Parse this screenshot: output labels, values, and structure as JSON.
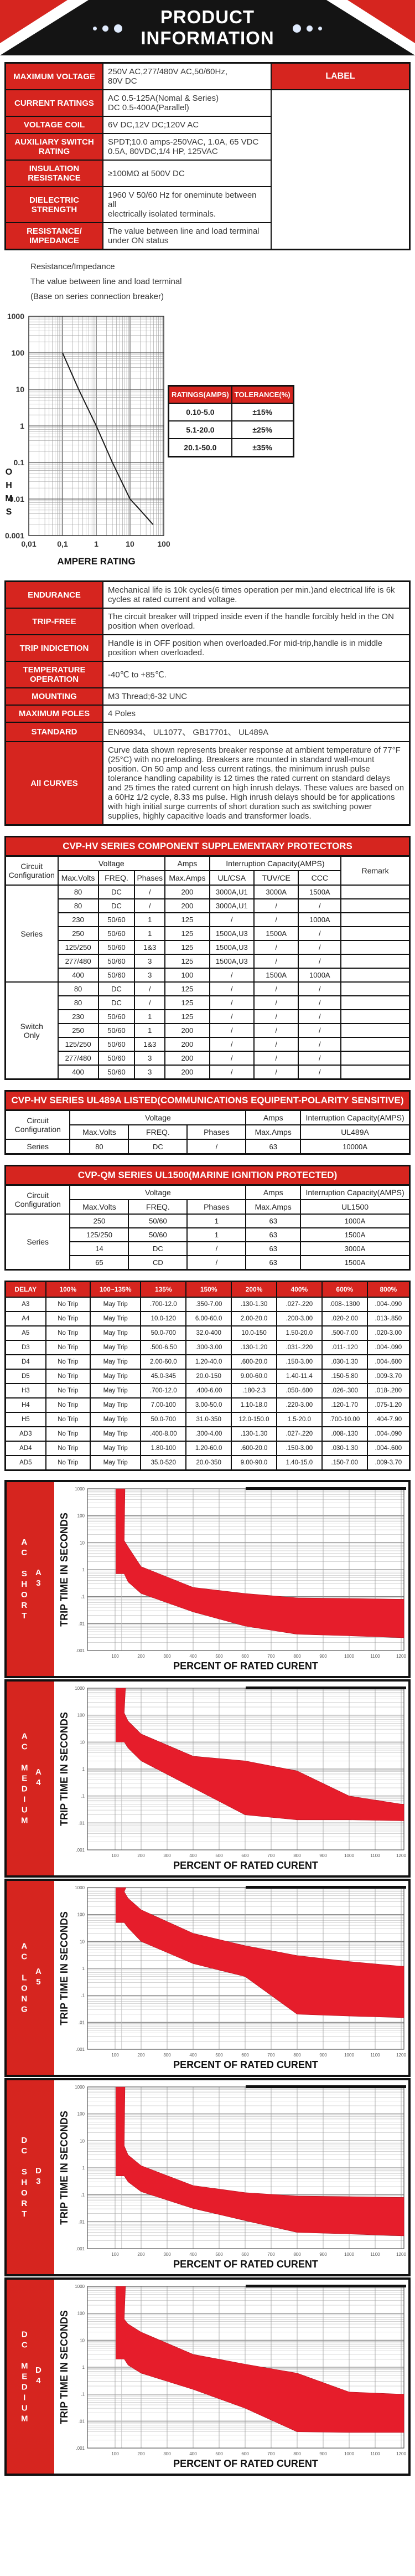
{
  "header": {
    "title_line1": "PRODUCT",
    "title_line2": "INFORMATION",
    "accent_red": "#d6251f",
    "band_black": "#141414",
    "dot_color": "#dfeafc"
  },
  "spec_table": {
    "label_box": "LABEL",
    "rows": [
      {
        "label": "MAXIMUM VOLTAGE",
        "value": "250V AC,277/480V AC,50/60Hz,\n80V DC"
      },
      {
        "label": "CURRENT RATINGS",
        "value": "AC 0.5-125A(Nomal & Series)\nDC 0.5-400A(Parallel)"
      },
      {
        "label": "VOLTAGE COIL",
        "value": "6V DC,12V DC;120V AC"
      },
      {
        "label": "AUXILIARY SWITCH RATING",
        "value": "SPDT;10.0 amps-250VAC, 1.0A, 65 VDC\n0.5A, 80VDC,1/4 HP, 125VAC"
      },
      {
        "label": "INSULATION RESISTANCE",
        "value": "≥100MΩ at 500V DC"
      },
      {
        "label": "DIELECTRIC STRENGTH",
        "value": "1960 V 50/60 Hz for oneminute between all\nelectrically isolated terminals."
      },
      {
        "label": "RESISTANCE/ IMPEDANCE",
        "value": "The value between line and load terminal\nunder ON status"
      }
    ]
  },
  "notes": [
    "Resistance/Impedance",
    "The value between line and load terminal",
    "(Base on series connection breaker)"
  ],
  "ohms_chart": {
    "type": "line",
    "ylabel_letters": "OHMS",
    "xlabel": "AMPERE RATING",
    "y_ticks": [
      "1000",
      "100",
      "10",
      "1",
      "0.1",
      "0.01",
      "0.001"
    ],
    "x_ticks": [
      "0,01",
      "0,1",
      "1",
      "10",
      "100"
    ],
    "x_range_log": [
      -2,
      2
    ],
    "y_range_log": [
      -3,
      3
    ],
    "line": [
      [
        0.1,
        100
      ],
      [
        0.3,
        10
      ],
      [
        1,
        1
      ],
      [
        3,
        0.1
      ],
      [
        10,
        0.01
      ],
      [
        20,
        0.005
      ],
      [
        48,
        0.002
      ]
    ]
  },
  "tolerance_table": {
    "headers": [
      "RATINGS(AMPS)",
      "TOLERANCE(%)"
    ],
    "rows": [
      [
        "0.10-5.0",
        "±15%"
      ],
      [
        "5.1-20.0",
        "±25%"
      ],
      [
        "20.1-50.0",
        "±35%"
      ]
    ]
  },
  "spec_table2": {
    "rows": [
      {
        "label": "ENDURANCE",
        "value": "Mechanical life is 10k cycles(6 times operation per min.)and electrical life is 6k cycles at rated current and voltage."
      },
      {
        "label": "TRIP-FREE",
        "value": "The circuit breaker will tripped inside even if the handle forcibly held in the ON position when overload."
      },
      {
        "label": "TRIP INDICETION",
        "value": "Handle is in OFF position when overloaded.For mid-trip,handle is in middle position when overloaded."
      },
      {
        "label": "TEMPERATURE OPERATION",
        "value": "-40℃ to +85℃."
      },
      {
        "label": "MOUNTING",
        "value": "M3 Thread;6-32 UNC"
      },
      {
        "label": "MAXIMUM POLES",
        "value": "4 Poles"
      },
      {
        "label": "STANDARD",
        "value": "EN60934、 UL1077、 GB17701、 UL489A"
      },
      {
        "label": "All CURVES",
        "value": "Curve data shown represents breaker response at ambient temperature of 77°F (25°C) with no preloading. Breakers are mounted in standard wall-mount position. On 50 amp and less current ratings, the minimum inrush pulse tolerance handling capability is 12 times the rated current on standard delays and 25 times the rated current on high inrush delays. These values are based on a 60Hz 1/2 cycle, 8.33 ms pulse. High inrush delays should be for applications with high initial surge currents of short duration such as switching power supplies, highly capacitive loads and transformer loads."
      }
    ]
  },
  "cvp_hv": {
    "title": "CVP-HV SERIES COMPONENT SUPPLEMENTARY PROTECTORS",
    "headers": {
      "circuit": "Circuit\nConfiguration",
      "voltage": "Voltage",
      "amps": "Amps",
      "interruption": "Interruption Capacity(AMPS)",
      "remark": "Remark",
      "max_volts": "Max.Volts",
      "freq": "FREQ.",
      "phases": "Phases",
      "max_amps": "Max.Amps",
      "ul_csa": "UL/CSA",
      "tuv_ce": "TUV/CE",
      "ccc": "CCC"
    },
    "groups": [
      {
        "name": "Series",
        "rows": [
          [
            "80",
            "DC",
            "/",
            "200",
            "3000A,U1",
            "3000A",
            "1500A"
          ],
          [
            "80",
            "DC",
            "/",
            "200",
            "3000A,U1",
            "/",
            "/"
          ],
          [
            "230",
            "50/60",
            "1",
            "125",
            "/",
            "/",
            "1000A"
          ],
          [
            "250",
            "50/60",
            "1",
            "125",
            "1500A,U3",
            "1500A",
            "/"
          ],
          [
            "125/250",
            "50/60",
            "1&3",
            "125",
            "1500A,U3",
            "/",
            "/"
          ],
          [
            "277/480",
            "50/60",
            "3",
            "125",
            "1500A,U3",
            "/",
            "/"
          ],
          [
            "400",
            "50/60",
            "3",
            "100",
            "/",
            "1500A",
            "1000A"
          ]
        ]
      },
      {
        "name": "Switch\nOnly",
        "rows": [
          [
            "80",
            "DC",
            "/",
            "125",
            "/",
            "/",
            "/"
          ],
          [
            "80",
            "DC",
            "/",
            "125",
            "/",
            "/",
            "/"
          ],
          [
            "230",
            "50/60",
            "1",
            "125",
            "/",
            "/",
            "/"
          ],
          [
            "250",
            "50/60",
            "1",
            "200",
            "/",
            "/",
            "/"
          ],
          [
            "125/250",
            "50/60",
            "1&3",
            "200",
            "/",
            "/",
            "/"
          ],
          [
            "277/480",
            "50/60",
            "3",
            "200",
            "/",
            "/",
            "/"
          ],
          [
            "400",
            "50/60",
            "3",
            "200",
            "/",
            "/",
            "/"
          ]
        ]
      }
    ]
  },
  "ul489a_table": {
    "title": "CVP-HV SERIES UL489A LISTED(COMMUNICATIONS EQUIPENT-POLARITY SENSITIVE)",
    "headers": {
      "circuit": "Circuit\nConfiguration",
      "voltage": "Voltage",
      "amps": "Amps",
      "interruption": "Interruption Capacity(AMPS)",
      "max_volts": "Max.Volts",
      "freq": "FREQ.",
      "phases": "Phases",
      "max_amps": "Max.Amps",
      "cap_col": "UL489A"
    },
    "group_name": "Series",
    "rows": [
      [
        "80",
        "DC",
        "/",
        "63",
        "10000A"
      ]
    ]
  },
  "cvp_qm": {
    "title": "CVP-QM SERIES UL1500(MARINE IGNITION PROTECTED)",
    "headers": {
      "circuit": "Circuit\nConfiguration",
      "voltage": "Voltage",
      "amps": "Amps",
      "interruption": "Interruption Capacity(AMPS)",
      "max_volts": "Max.Volts",
      "freq": "FREQ.",
      "phases": "Phases",
      "max_amps": "Max.Amps",
      "cap_col": "UL1500"
    },
    "group_name": "Series",
    "rows": [
      [
        "250",
        "50/60",
        "1",
        "63",
        "1000A"
      ],
      [
        "125/250",
        "50/60",
        "1",
        "63",
        "1500A"
      ],
      [
        "14",
        "DC",
        "/",
        "63",
        "3000A"
      ],
      [
        "65",
        "CD",
        "/",
        "63",
        "1500A"
      ]
    ]
  },
  "delay_table": {
    "headers": [
      "DELAY",
      "100%",
      "100~135%",
      "135%",
      "150%",
      "200%",
      "400%",
      "600%",
      "800%"
    ],
    "rows": [
      [
        "A3",
        "No Trip",
        "May Trip",
        ".700-12.0",
        ".350-7.00",
        ".130-1.30",
        ".027-.220",
        ".008-.1300",
        ".004-.090"
      ],
      [
        "A4",
        "No Trip",
        "May Trip",
        "10.0-120",
        "6.00-60.0",
        "2.00-20.0",
        ".200-3.00",
        ".020-2.00",
        ".013-.850"
      ],
      [
        "A5",
        "No Trip",
        "May Trip",
        "50.0-700",
        "32.0-400",
        "10.0-150",
        "1.50-20.0",
        ".500-7.00",
        ".020-3.00"
      ],
      [
        "D3",
        "No Trip",
        "May Trip",
        ".500-6.50",
        ".300-3.00",
        ".130-1.20",
        ".031-.220",
        ".011-.120",
        ".004-.090"
      ],
      [
        "D4",
        "No Trip",
        "May Trip",
        "2.00-60.0",
        "1.20-40.0",
        ".600-20.0",
        ".150-3.00",
        ".030-1.30",
        ".004-.600"
      ],
      [
        "D5",
        "No Trip",
        "May Trip",
        "45.0-345",
        "20.0-150",
        "9.00-60.0",
        "1.40-11.4",
        ".150-5.80",
        ".009-3.70"
      ],
      [
        "H3",
        "No Trip",
        "May Trip",
        ".700-12.0",
        ".400-6.00",
        ".180-2.3",
        ".050-.600",
        ".026-.300",
        ".018-.200"
      ],
      [
        "H4",
        "No Trip",
        "May Trip",
        "7.00-100",
        "3.00-50.0",
        "1.10-18.0",
        ".220-3.00",
        ".120-1.70",
        ".075-1.20"
      ],
      [
        "H5",
        "No Trip",
        "May Trip",
        "50.0-700",
        "31.0-350",
        "12.0-150.0",
        "1.5-20.0",
        ".700-10.00",
        ".404-7.90"
      ],
      [
        "AD3",
        "No Trip",
        "May Trip",
        ".400-8.00",
        ".300-4.00",
        ".130-1.30",
        ".027-.220",
        ".008-.130",
        ".004-.090"
      ],
      [
        "AD4",
        "No Trip",
        "May Trip",
        "1.80-100",
        "1.20-60.0",
        ".600-20.0",
        ".150-3.00",
        ".030-1.30",
        ".004-.600"
      ],
      [
        "AD5",
        "No Trip",
        "May Trip",
        "35.0-520",
        "20.0-350",
        "9.00-90.0",
        "1.40-15.0",
        ".150-7.00",
        ".009-3.70"
      ]
    ]
  },
  "trip_charts": {
    "type": "area",
    "ylabel": "TRIP TIME IN SECONDS",
    "xlabel": "PERCENT OF RATED CURENT",
    "y_ticks": [
      "1000",
      "100",
      "10",
      "1",
      ".1",
      ".01",
      ".001"
    ],
    "x_ticks": [
      100,
      200,
      300,
      400,
      500,
      600,
      700,
      800,
      900,
      1000,
      1100,
      1200
    ],
    "band_color": "#e61d2b",
    "panels": [
      {
        "group": "AC",
        "word": "SHORT",
        "code": "A3",
        "strip": [
          103,
          138
        ],
        "pct": [
          135,
          150,
          200,
          400,
          600,
          800,
          1000,
          1200
        ],
        "min": [
          0.7,
          0.35,
          0.13,
          0.027,
          0.008,
          0.004,
          0.0035,
          0.003
        ],
        "max": [
          12,
          7,
          1.3,
          0.22,
          0.13,
          0.09,
          0.085,
          0.08
        ]
      },
      {
        "group": "AC",
        "word": "MEDIUM",
        "code": "A4",
        "strip": [
          103,
          140
        ],
        "pct": [
          135,
          150,
          200,
          400,
          600,
          800,
          1000,
          1200
        ],
        "min": [
          10,
          6,
          2,
          0.2,
          0.02,
          0.013,
          0.013,
          0.012
        ],
        "max": [
          120,
          60,
          20,
          3,
          2,
          0.85,
          0.1,
          0.05
        ]
      },
      {
        "group": "AC",
        "word": "LONG",
        "code": "A5",
        "strip": [
          103,
          142
        ],
        "pct": [
          135,
          150,
          200,
          400,
          600,
          800,
          1000,
          1200
        ],
        "min": [
          50,
          32,
          10,
          1.5,
          0.5,
          0.02,
          0.017,
          0.015
        ],
        "max": [
          700,
          400,
          150,
          20,
          7,
          3,
          1.8,
          1.2
        ]
      },
      {
        "group": "DC",
        "word": "SHORT",
        "code": "D3",
        "strip": [
          103,
          138
        ],
        "pct": [
          135,
          150,
          200,
          400,
          600,
          800,
          1000,
          1200
        ],
        "min": [
          0.5,
          0.3,
          0.13,
          0.031,
          0.011,
          0.004,
          0.0035,
          0.003
        ],
        "max": [
          6.5,
          3,
          1.2,
          0.22,
          0.12,
          0.09,
          0.085,
          0.08
        ]
      },
      {
        "group": "DC",
        "word": "MEDIUM",
        "code": "D4",
        "strip": [
          103,
          140
        ],
        "pct": [
          135,
          150,
          200,
          400,
          600,
          800,
          1000,
          1200
        ],
        "min": [
          2,
          1.2,
          0.6,
          0.15,
          0.03,
          0.004,
          0.0038,
          0.0038
        ],
        "max": [
          60,
          40,
          20,
          3,
          1.3,
          0.6,
          0.12,
          0.1
        ]
      }
    ]
  }
}
